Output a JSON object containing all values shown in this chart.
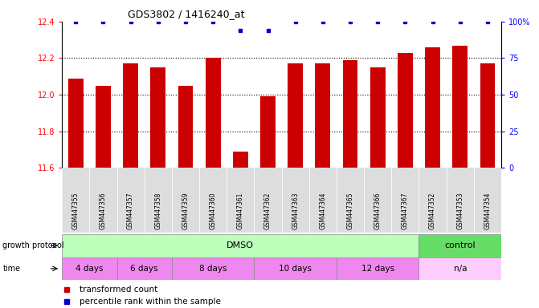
{
  "title": "GDS3802 / 1416240_at",
  "samples": [
    "GSM447355",
    "GSM447356",
    "GSM447357",
    "GSM447358",
    "GSM447359",
    "GSM447360",
    "GSM447361",
    "GSM447362",
    "GSM447363",
    "GSM447364",
    "GSM447365",
    "GSM447366",
    "GSM447367",
    "GSM447352",
    "GSM447353",
    "GSM447354"
  ],
  "bar_values": [
    12.09,
    12.05,
    12.17,
    12.15,
    12.05,
    12.2,
    11.69,
    11.99,
    12.17,
    12.17,
    12.19,
    12.15,
    12.23,
    12.26,
    12.27,
    12.17
  ],
  "percentile_values": [
    100,
    100,
    100,
    100,
    100,
    100,
    94,
    94,
    100,
    100,
    100,
    100,
    100,
    100,
    100,
    100
  ],
  "bar_color": "#cc0000",
  "percentile_color": "#0000cc",
  "ylim_left": [
    11.6,
    12.4
  ],
  "ylim_right": [
    0,
    100
  ],
  "yticks_left": [
    11.6,
    11.8,
    12.0,
    12.2,
    12.4
  ],
  "yticks_right": [
    0,
    25,
    50,
    75,
    100
  ],
  "dotted_lines": [
    11.8,
    12.0,
    12.2
  ],
  "legend_red": "transformed count",
  "legend_blue": "percentile rank within the sample",
  "xlabel_growth": "growth protocol",
  "xlabel_time": "time",
  "bar_width": 0.55,
  "figsize": [
    6.71,
    3.84
  ],
  "dpi": 100,
  "dmso_color": "#bbffbb",
  "control_color": "#66dd66",
  "time_main_color": "#ee88ee",
  "time_na_color": "#ffccff",
  "xticklabel_bg": "#dddddd"
}
